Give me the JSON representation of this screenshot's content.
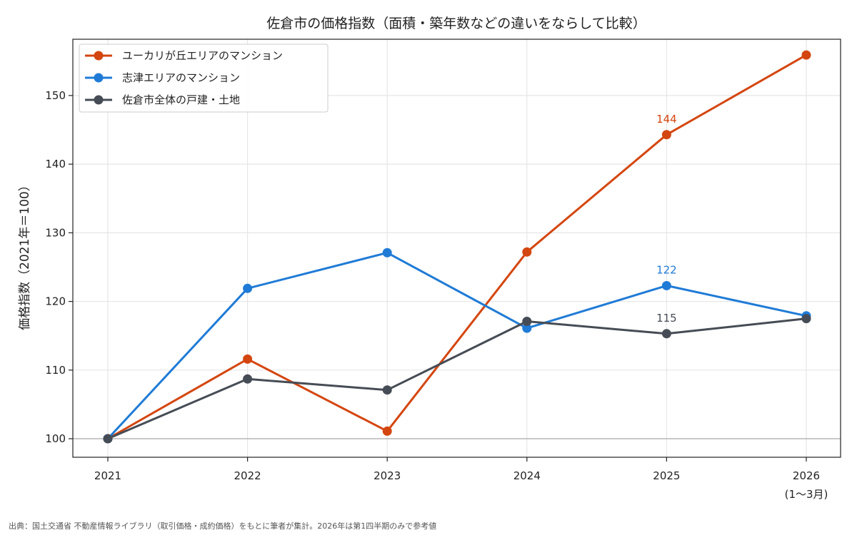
{
  "chart_data": {
    "type": "line",
    "title": "佐倉市の価格指数（面積・築年数などの違いをならして比較）",
    "ylabel": "価格指数（2021年＝100）",
    "xlabel": "",
    "categories": [
      "2021",
      "2022",
      "2023",
      "2024",
      "2025",
      "2026"
    ],
    "category_sublabels": [
      "",
      "",
      "",
      "",
      "",
      "(1〜3月)"
    ],
    "ylim": [
      97.3,
      158.2
    ],
    "yticks": [
      100,
      110,
      120,
      130,
      140,
      150
    ],
    "grid": true,
    "legend_position": "top-left",
    "baseline": 100,
    "series": [
      {
        "name": "ユーカリが丘エリアのマンション",
        "color": "#d4460f",
        "values": [
          100,
          111.6,
          101.1,
          127.2,
          144.3,
          155.9
        ]
      },
      {
        "name": "志津エリアのマンション",
        "color": "#1f7bd6",
        "values": [
          100,
          121.9,
          127.1,
          116.1,
          122.3,
          117.9
        ]
      },
      {
        "name": "佐倉市全体の戸建・土地",
        "color": "#464c55",
        "values": [
          100,
          108.7,
          107.1,
          117.1,
          115.3,
          117.5
        ]
      }
    ],
    "annotations": [
      {
        "series": 0,
        "index": 4,
        "text": "144"
      },
      {
        "series": 1,
        "index": 4,
        "text": "122"
      },
      {
        "series": 2,
        "index": 4,
        "text": "115"
      }
    ],
    "source": "出典：国土交通省 不動産情報ライブラリ（取引価格・成約価格）をもとに筆者が集計。2026年は第1四半期のみで参考値"
  }
}
